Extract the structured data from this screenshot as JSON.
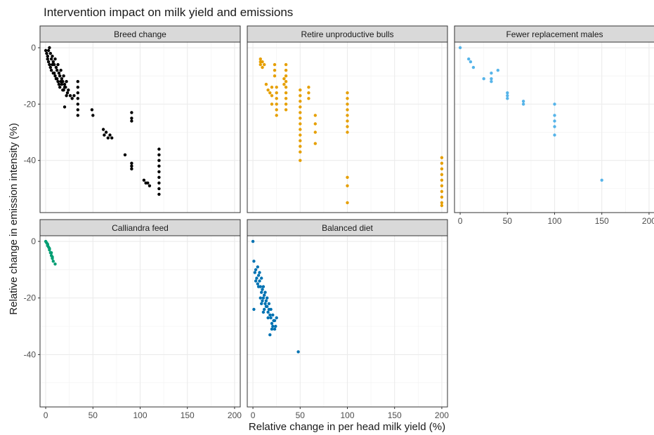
{
  "chart_data": {
    "type": "scatter",
    "title": "Intervention impact on milk yield and emissions",
    "xlabel": "Relative change in per head milk yield (%)",
    "ylabel": "Relative change in emission intensity (%)",
    "xlim": [
      -6,
      206
    ],
    "ylim": [
      -58.5,
      2
    ],
    "x_ticks": [
      0,
      50,
      100,
      150,
      200
    ],
    "y_ticks": [
      0,
      -20,
      -40
    ],
    "grid": true,
    "legend": "none",
    "facets": [
      {
        "name": "Breed change",
        "color": "#000000",
        "points": [
          [
            0,
            -1
          ],
          [
            1,
            -2
          ],
          [
            2,
            -3
          ],
          [
            3,
            -1
          ],
          [
            4,
            0
          ],
          [
            5,
            -2
          ],
          [
            6,
            -4
          ],
          [
            7,
            -3
          ],
          [
            8,
            -5
          ],
          [
            9,
            -6
          ],
          [
            10,
            -4
          ],
          [
            11,
            -7
          ],
          [
            12,
            -8
          ],
          [
            13,
            -6
          ],
          [
            14,
            -9
          ],
          [
            15,
            -10
          ],
          [
            16,
            -8
          ],
          [
            17,
            -11
          ],
          [
            18,
            -12
          ],
          [
            19,
            -10
          ],
          [
            20,
            -13
          ],
          [
            21,
            -14
          ],
          [
            22,
            -12
          ],
          [
            23,
            -16
          ],
          [
            3,
            -5
          ],
          [
            5,
            -7
          ],
          [
            7,
            -6
          ],
          [
            9,
            -9
          ],
          [
            11,
            -11
          ],
          [
            13,
            -12
          ],
          [
            15,
            -14
          ],
          [
            17,
            -13
          ],
          [
            19,
            -15
          ],
          [
            2,
            -4
          ],
          [
            6,
            -8
          ],
          [
            10,
            -10
          ],
          [
            14,
            -13
          ],
          [
            18,
            -15
          ],
          [
            22,
            -17
          ],
          [
            4,
            -6
          ],
          [
            8,
            -9
          ],
          [
            12,
            -11
          ],
          [
            16,
            -12
          ],
          [
            20,
            -14
          ],
          [
            24,
            -15
          ],
          [
            26,
            -17
          ],
          [
            28,
            -18
          ],
          [
            30,
            -17
          ],
          [
            20,
            -21
          ],
          [
            34,
            -12
          ],
          [
            34,
            -14
          ],
          [
            34,
            -16
          ],
          [
            34,
            -18
          ],
          [
            34,
            -20
          ],
          [
            34,
            -22
          ],
          [
            34,
            -24
          ],
          [
            49,
            -22
          ],
          [
            50,
            -24
          ],
          [
            61,
            -29
          ],
          [
            62,
            -31
          ],
          [
            64,
            -30
          ],
          [
            66,
            -32
          ],
          [
            68,
            -31
          ],
          [
            70,
            -32
          ],
          [
            84,
            -38
          ],
          [
            91,
            -23
          ],
          [
            91,
            -25
          ],
          [
            91,
            -26
          ],
          [
            91,
            -41
          ],
          [
            91,
            -42
          ],
          [
            91,
            -43
          ],
          [
            104,
            -47
          ],
          [
            106,
            -48
          ],
          [
            108,
            -48
          ],
          [
            110,
            -49
          ],
          [
            120,
            -36
          ],
          [
            120,
            -38
          ],
          [
            120,
            -40
          ],
          [
            120,
            -42
          ],
          [
            120,
            -44
          ],
          [
            120,
            -46
          ],
          [
            120,
            -48
          ],
          [
            120,
            -50
          ],
          [
            120,
            -52
          ]
        ]
      },
      {
        "name": "Retire unproductive bulls",
        "color": "#E69F00",
        "points": [
          [
            8,
            -4
          ],
          [
            8,
            -5
          ],
          [
            8,
            -6
          ],
          [
            10,
            -5
          ],
          [
            10,
            -7
          ],
          [
            12,
            -6
          ],
          [
            14,
            -13
          ],
          [
            16,
            -15
          ],
          [
            18,
            -16
          ],
          [
            20,
            -14
          ],
          [
            20,
            -17
          ],
          [
            20,
            -20
          ],
          [
            23,
            -6
          ],
          [
            23,
            -8
          ],
          [
            23,
            -10
          ],
          [
            25,
            -14
          ],
          [
            25,
            -16
          ],
          [
            25,
            -18
          ],
          [
            25,
            -20
          ],
          [
            25,
            -22
          ],
          [
            25,
            -24
          ],
          [
            33,
            -11
          ],
          [
            33,
            -13
          ],
          [
            35,
            -6
          ],
          [
            35,
            -8
          ],
          [
            35,
            -10
          ],
          [
            35,
            -12
          ],
          [
            35,
            -14
          ],
          [
            35,
            -16
          ],
          [
            35,
            -18
          ],
          [
            35,
            -20
          ],
          [
            35,
            -22
          ],
          [
            50,
            -15
          ],
          [
            50,
            -17
          ],
          [
            50,
            -19
          ],
          [
            50,
            -21
          ],
          [
            50,
            -23
          ],
          [
            50,
            -25
          ],
          [
            50,
            -27
          ],
          [
            50,
            -29
          ],
          [
            50,
            -31
          ],
          [
            50,
            -33
          ],
          [
            50,
            -35
          ],
          [
            50,
            -37
          ],
          [
            50,
            -40
          ],
          [
            59,
            -14
          ],
          [
            59,
            -16
          ],
          [
            59,
            -18
          ],
          [
            66,
            -24
          ],
          [
            66,
            -27
          ],
          [
            66,
            -30
          ],
          [
            66,
            -34
          ],
          [
            100,
            -16
          ],
          [
            100,
            -18
          ],
          [
            100,
            -20
          ],
          [
            100,
            -22
          ],
          [
            100,
            -24
          ],
          [
            100,
            -26
          ],
          [
            100,
            -28
          ],
          [
            100,
            -30
          ],
          [
            100,
            -46
          ],
          [
            100,
            -49
          ],
          [
            100,
            -55
          ],
          [
            200,
            -39
          ],
          [
            200,
            -41
          ],
          [
            200,
            -43
          ],
          [
            200,
            -45
          ],
          [
            200,
            -47
          ],
          [
            200,
            -49
          ],
          [
            200,
            -51
          ],
          [
            200,
            -53
          ],
          [
            200,
            -55
          ],
          [
            200,
            -56
          ]
        ]
      },
      {
        "name": "Fewer replacement males",
        "color": "#56B4E9",
        "points": [
          [
            0,
            0
          ],
          [
            9,
            -4
          ],
          [
            11,
            -5
          ],
          [
            14,
            -7
          ],
          [
            25,
            -11
          ],
          [
            33,
            -9
          ],
          [
            33,
            -11
          ],
          [
            33,
            -12
          ],
          [
            40,
            -8
          ],
          [
            50,
            -16
          ],
          [
            50,
            -17
          ],
          [
            50,
            -18
          ],
          [
            67,
            -19
          ],
          [
            67,
            -20
          ],
          [
            100,
            -20
          ],
          [
            100,
            -24
          ],
          [
            100,
            -26
          ],
          [
            100,
            -28
          ],
          [
            100,
            -31
          ],
          [
            150,
            -47
          ]
        ]
      },
      {
        "name": "Calliandra feed",
        "color": "#009E73",
        "points": [
          [
            0,
            0
          ],
          [
            1,
            -0.5
          ],
          [
            2,
            -1
          ],
          [
            3,
            -2
          ],
          [
            4,
            -3
          ],
          [
            5,
            -4
          ],
          [
            6,
            -5
          ],
          [
            7,
            -6
          ],
          [
            8,
            -7
          ],
          [
            2,
            -1.5
          ],
          [
            4,
            -2.5
          ],
          [
            6,
            -4
          ],
          [
            7,
            -5.5
          ],
          [
            10,
            -8
          ]
        ]
      },
      {
        "name": "Balanced diet",
        "color": "#0072B2",
        "points": [
          [
            0,
            0
          ],
          [
            1,
            -7
          ],
          [
            2,
            -11
          ],
          [
            3,
            -10
          ],
          [
            4,
            -13
          ],
          [
            5,
            -15
          ],
          [
            6,
            -12
          ],
          [
            7,
            -14
          ],
          [
            8,
            -16
          ],
          [
            9,
            -18
          ],
          [
            10,
            -17
          ],
          [
            11,
            -20
          ],
          [
            12,
            -19
          ],
          [
            13,
            -22
          ],
          [
            14,
            -21
          ],
          [
            15,
            -23
          ],
          [
            16,
            -25
          ],
          [
            17,
            -24
          ],
          [
            18,
            -26
          ],
          [
            19,
            -27
          ],
          [
            20,
            -29
          ],
          [
            21,
            -30
          ],
          [
            22,
            -28
          ],
          [
            23,
            -31
          ],
          [
            24,
            -30
          ],
          [
            25,
            -27
          ],
          [
            7,
            -11
          ],
          [
            9,
            -13
          ],
          [
            11,
            -16
          ],
          [
            13,
            -18
          ],
          [
            15,
            -20
          ],
          [
            17,
            -22
          ],
          [
            19,
            -24
          ],
          [
            21,
            -26
          ],
          [
            23,
            -28
          ],
          [
            10,
            -21
          ],
          [
            12,
            -24
          ],
          [
            14,
            -23
          ],
          [
            16,
            -27
          ],
          [
            18,
            -33
          ],
          [
            20,
            -31
          ],
          [
            5,
            -9
          ],
          [
            3,
            -14
          ],
          [
            6,
            -16
          ],
          [
            8,
            -20
          ],
          [
            9,
            -22
          ],
          [
            11,
            -25
          ],
          [
            1,
            -24
          ],
          [
            48,
            -39
          ]
        ]
      }
    ]
  }
}
